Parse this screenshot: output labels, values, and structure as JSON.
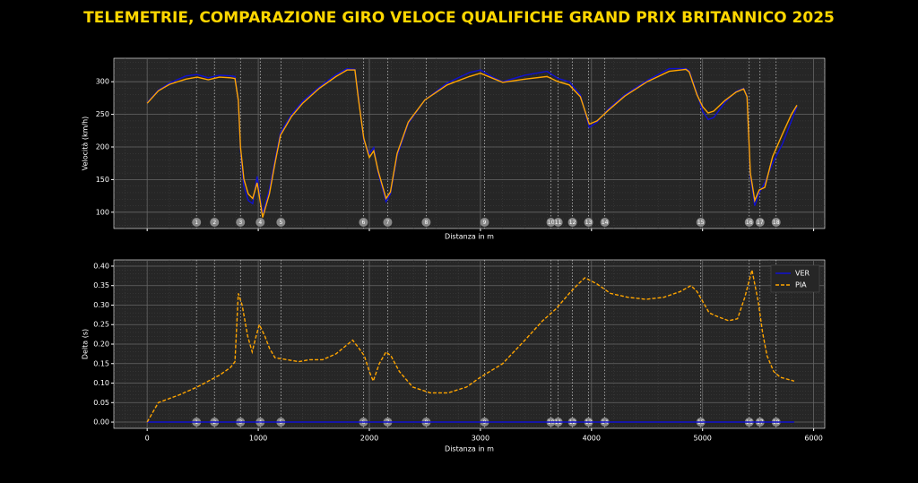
{
  "title": "TELEMETRIE, COMPARAZIONE GIRO VELOCE QUALIFICHE GRAND PRIX BRITANNICO 2025",
  "chart_data": [
    {
      "type": "line",
      "xlabel": "Distanza in m",
      "ylabel": "Velocità (km/h)",
      "xlim": [
        -300,
        6100
      ],
      "xticks": [
        0,
        1000,
        2000,
        3000,
        4000,
        5000,
        6000
      ],
      "show_xtick_labels": false,
      "ylim": [
        75,
        336
      ],
      "yticks": [
        100,
        150,
        200,
        250,
        300
      ],
      "grid": true,
      "x": [
        0,
        100,
        200,
        350,
        450,
        550,
        650,
        750,
        790,
        820,
        840,
        870,
        910,
        950,
        990,
        1010,
        1040,
        1100,
        1150,
        1200,
        1300,
        1400,
        1550,
        1700,
        1800,
        1870,
        1900,
        1950,
        2000,
        2040,
        2080,
        2150,
        2190,
        2250,
        2350,
        2500,
        2700,
        2900,
        3000,
        3100,
        3200,
        3400,
        3600,
        3700,
        3800,
        3900,
        3980,
        4050,
        4150,
        4300,
        4500,
        4700,
        4850,
        4880,
        4950,
        5000,
        5050,
        5100,
        5200,
        5300,
        5370,
        5400,
        5430,
        5470,
        5510,
        5560,
        5630,
        5720,
        5800,
        5850
      ],
      "series": [
        {
          "name": "VER",
          "color": "#1010d0",
          "linestyle": "solid",
          "values": [
            268,
            287,
            298,
            309,
            311,
            306,
            310,
            309,
            308,
            270,
            195,
            140,
            118,
            113,
            155,
            130,
            98,
            135,
            180,
            222,
            250,
            270,
            292,
            311,
            320,
            319,
            280,
            210,
            190,
            199,
            160,
            116,
            128,
            186,
            236,
            272,
            298,
            314,
            318,
            308,
            300,
            310,
            316,
            305,
            300,
            280,
            230,
            238,
            258,
            280,
            302,
            320,
            320,
            317,
            282,
            255,
            242,
            245,
            268,
            285,
            290,
            278,
            155,
            110,
            130,
            145,
            175,
            205,
            240,
            262
          ]
        },
        {
          "name": "PIA",
          "color": "#ffa500",
          "linestyle": "solid",
          "values": [
            267,
            286,
            296,
            304,
            307,
            303,
            307,
            306,
            305,
            272,
            199,
            151,
            128,
            121,
            145,
            125,
            92,
            128,
            175,
            218,
            247,
            267,
            290,
            308,
            318,
            318,
            276,
            213,
            184,
            194,
            163,
            121,
            131,
            190,
            238,
            272,
            295,
            308,
            313,
            306,
            299,
            304,
            308,
            300,
            295,
            277,
            235,
            240,
            256,
            278,
            300,
            316,
            319,
            315,
            280,
            262,
            252,
            255,
            271,
            284,
            289,
            277,
            160,
            118,
            134,
            138,
            185,
            220,
            250,
            264
          ]
        }
      ],
      "corners": [
        {
          "label": "1",
          "distance": 444
        },
        {
          "label": "2",
          "distance": 606
        },
        {
          "label": "3",
          "distance": 840
        },
        {
          "label": "4",
          "distance": 1018
        },
        {
          "label": "5",
          "distance": 1204
        },
        {
          "label": "6",
          "distance": 1947
        },
        {
          "label": "7",
          "distance": 2165
        },
        {
          "label": "8",
          "distance": 2512
        },
        {
          "label": "9",
          "distance": 3037
        },
        {
          "label": "10",
          "distance": 3635
        },
        {
          "label": "11",
          "distance": 3700
        },
        {
          "label": "12",
          "distance": 3829
        },
        {
          "label": "13",
          "distance": 3974
        },
        {
          "label": "14",
          "distance": 4120
        },
        {
          "label": "15",
          "distance": 4984
        },
        {
          "label": "16",
          "distance": 5420
        },
        {
          "label": "17",
          "distance": 5517
        },
        {
          "label": "18",
          "distance": 5662
        }
      ]
    },
    {
      "type": "line",
      "xlabel": "Distanza in m",
      "ylabel": "Delta (s)",
      "xlim": [
        -300,
        6100
      ],
      "xticks": [
        0,
        1000,
        2000,
        3000,
        4000,
        5000,
        6000
      ],
      "show_xtick_labels": true,
      "ylim": [
        -0.016,
        0.416
      ],
      "yticks": [
        {
          "value": 0,
          "label": "0.00"
        },
        {
          "value": 0.05,
          "label": "0.05"
        },
        {
          "value": 0.1,
          "label": "0.10"
        },
        {
          "value": 0.15,
          "label": "0.15"
        },
        {
          "value": 0.2,
          "label": "0.20"
        },
        {
          "value": 0.25,
          "label": "0.25"
        },
        {
          "value": 0.3,
          "label": "0.30"
        },
        {
          "value": 0.35,
          "label": "0.35"
        },
        {
          "value": 0.4,
          "label": "0.40"
        }
      ],
      "grid": true,
      "legend": "upper right",
      "x": [
        0,
        100,
        290,
        450,
        650,
        750,
        790,
        820,
        855,
        905,
        945,
        980,
        1010,
        1060,
        1100,
        1150,
        1260,
        1365,
        1460,
        1580,
        1700,
        1850,
        1905,
        1955,
        2000,
        2035,
        2090,
        2150,
        2195,
        2270,
        2390,
        2550,
        2710,
        2875,
        3000,
        3200,
        3400,
        3560,
        3680,
        3800,
        3885,
        3940,
        4045,
        4170,
        4330,
        4490,
        4650,
        4800,
        4895,
        4950,
        5000,
        5060,
        5140,
        5235,
        5315,
        5380,
        5445,
        5500,
        5540,
        5580,
        5640,
        5700,
        5825
      ],
      "series": [
        {
          "name": "VER",
          "color": "#1010d0",
          "linestyle": "solid",
          "values": [
            0,
            0,
            0,
            0,
            0,
            0,
            0,
            0,
            0,
            0,
            0,
            0,
            0,
            0,
            0,
            0,
            0,
            0,
            0,
            0,
            0,
            0,
            0,
            0,
            0,
            0,
            0,
            0,
            0,
            0,
            0,
            0,
            0,
            0,
            0,
            0,
            0,
            0,
            0,
            0,
            0,
            0,
            0,
            0,
            0,
            0,
            0,
            0,
            0,
            0,
            0,
            0,
            0,
            0,
            0,
            0,
            0,
            0,
            0,
            0,
            0,
            0,
            0
          ]
        },
        {
          "name": "PIA",
          "color": "#ffa500",
          "linestyle": "dashed",
          "values": [
            0,
            0.05,
            0.07,
            0.09,
            0.12,
            0.14,
            0.155,
            0.33,
            0.3,
            0.22,
            0.18,
            0.22,
            0.25,
            0.22,
            0.19,
            0.165,
            0.16,
            0.155,
            0.16,
            0.16,
            0.175,
            0.21,
            0.19,
            0.17,
            0.13,
            0.105,
            0.15,
            0.18,
            0.17,
            0.13,
            0.09,
            0.075,
            0.075,
            0.09,
            0.115,
            0.15,
            0.21,
            0.26,
            0.29,
            0.33,
            0.355,
            0.37,
            0.355,
            0.33,
            0.32,
            0.315,
            0.32,
            0.335,
            0.35,
            0.335,
            0.31,
            0.28,
            0.27,
            0.26,
            0.265,
            0.32,
            0.39,
            0.31,
            0.23,
            0.17,
            0.13,
            0.115,
            0.105
          ]
        }
      ],
      "corners": [
        {
          "label": "1",
          "distance": 444
        },
        {
          "label": "2",
          "distance": 606
        },
        {
          "label": "3",
          "distance": 840
        },
        {
          "label": "4",
          "distance": 1018
        },
        {
          "label": "5",
          "distance": 1204
        },
        {
          "label": "6",
          "distance": 1947
        },
        {
          "label": "7",
          "distance": 2165
        },
        {
          "label": "8",
          "distance": 2512
        },
        {
          "label": "9",
          "distance": 3037
        },
        {
          "label": "10",
          "distance": 3635
        },
        {
          "label": "11",
          "distance": 3700
        },
        {
          "label": "12",
          "distance": 3829
        },
        {
          "label": "13",
          "distance": 3974
        },
        {
          "label": "14",
          "distance": 4120
        },
        {
          "label": "15",
          "distance": 4984
        },
        {
          "label": "16",
          "distance": 5420
        },
        {
          "label": "17",
          "distance": 5517
        },
        {
          "label": "18",
          "distance": 5662
        }
      ]
    }
  ]
}
